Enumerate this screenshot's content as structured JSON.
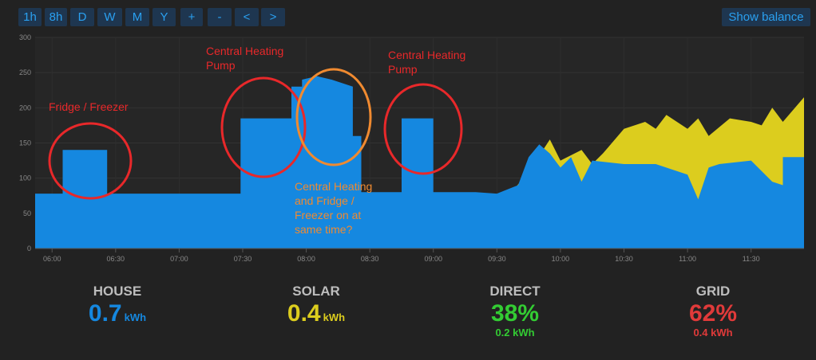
{
  "toolbar": {
    "ranges": [
      "1h",
      "8h",
      "D",
      "W",
      "M",
      "Y",
      "+",
      "-",
      "<",
      ">"
    ],
    "show_balance": "Show balance"
  },
  "colors": {
    "house": "#1588e0",
    "solar": "#dccd1e",
    "direct": "#33cc33",
    "grid": "#e03a3a",
    "label": "#bdbdbd",
    "annotation_red": "#e8282a",
    "annotation_orange": "#f08a30"
  },
  "chart_data": {
    "type": "area",
    "ylim": [
      0,
      300
    ],
    "y_ticks": [
      "0",
      "50",
      "100",
      "150",
      "200",
      "250",
      "300"
    ],
    "x_ticks": [
      "06:00",
      "06:30",
      "07:00",
      "07:30",
      "08:00",
      "08:30",
      "09:00",
      "09:30",
      "10:00",
      "10:30",
      "11:00",
      "11:30"
    ],
    "series": [
      {
        "name": "HOUSE",
        "color": "#1588e0",
        "x": [
          "05:52",
          "06:05",
          "06:05",
          "06:26",
          "06:26",
          "07:29",
          "07:29",
          "07:53",
          "07:53",
          "07:58",
          "07:58",
          "08:05",
          "08:12",
          "08:22",
          "08:22",
          "08:26",
          "08:26",
          "08:45",
          "08:45",
          "09:00",
          "09:00",
          "09:20",
          "09:30",
          "09:40",
          "09:45",
          "09:50",
          "09:55",
          "10:00",
          "10:05",
          "10:10",
          "10:15",
          "10:30",
          "10:45",
          "11:00",
          "11:05",
          "11:10",
          "11:15",
          "11:30",
          "11:40",
          "11:45",
          "11:45",
          "11:55"
        ],
        "values": [
          78,
          78,
          140,
          140,
          78,
          78,
          185,
          185,
          230,
          230,
          240,
          245,
          240,
          230,
          160,
          160,
          80,
          80,
          185,
          185,
          80,
          80,
          78,
          90,
          130,
          148,
          135,
          115,
          130,
          95,
          125,
          120,
          120,
          105,
          70,
          115,
          120,
          125,
          95,
          90,
          130,
          130
        ]
      },
      {
        "name": "SOLAR",
        "color": "#dccd1e",
        "x": [
          "07:55",
          "08:00",
          "08:15",
          "08:30",
          "08:45",
          "09:00",
          "09:15",
          "09:25",
          "09:35",
          "09:45",
          "09:50",
          "09:55",
          "10:00",
          "10:10",
          "10:15",
          "10:20",
          "10:30",
          "10:40",
          "10:45",
          "10:50",
          "11:00",
          "11:05",
          "11:10",
          "11:20",
          "11:30",
          "11:35",
          "11:40",
          "11:45",
          "11:55"
        ],
        "values": [
          0,
          5,
          15,
          30,
          40,
          48,
          55,
          60,
          72,
          110,
          132,
          155,
          125,
          140,
          120,
          135,
          170,
          180,
          170,
          190,
          170,
          185,
          160,
          185,
          180,
          175,
          200,
          180,
          215
        ]
      }
    ]
  },
  "annotations": {
    "fridge": "Fridge / Freezer",
    "pump1_line1": "Central Heating",
    "pump1_line2": "Pump",
    "pump2_line1": "Central Heating",
    "pump2_line2": "Pump",
    "both_line1": "Central Heating",
    "both_line2": "and Fridge /",
    "both_line3": "Freezer on at",
    "both_line4": "same time?"
  },
  "stats": {
    "house": {
      "label": "HOUSE",
      "value": "0.7",
      "unit": "kWh"
    },
    "solar": {
      "label": "SOLAR",
      "value": "0.4",
      "unit": "kWh"
    },
    "direct": {
      "label": "DIRECT",
      "value": "38%",
      "sub": "0.2 kWh"
    },
    "grid": {
      "label": "GRID",
      "value": "62%",
      "sub": "0.4 kWh"
    }
  }
}
